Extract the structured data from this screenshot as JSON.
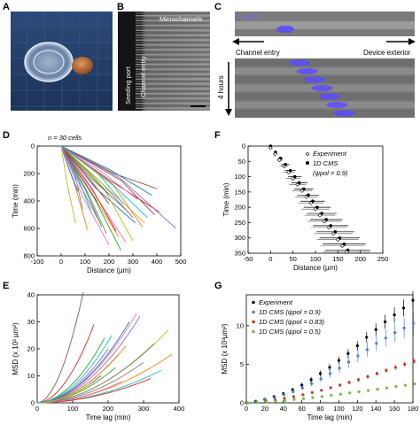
{
  "panels": {
    "A": "A",
    "B": "B",
    "C": "C",
    "D": "D",
    "E": "E",
    "F": "F",
    "G": "G"
  },
  "panel_b": {
    "seeding_port": "Seeding port",
    "channel_entry": "Channel entry",
    "microchannels": "Microchannels"
  },
  "panel_c": {
    "nucleus": "Nucleus",
    "channel_entry": "Channel entry",
    "device_exterior": "Device exterior",
    "time": "4 hours"
  },
  "colors": {
    "nucleus": "#5a4cff",
    "experiment": "#000000",
    "cms_09": "#4a7fd0",
    "cms_083": "#c0392b",
    "cms_05": "#7cb342"
  },
  "chart_data": [
    {
      "id": "D",
      "type": "line",
      "annotation": "n = 30 cells",
      "xlabel": "Distance (µm)",
      "ylabel": "Time (min)",
      "xlim": [
        -100,
        500
      ],
      "ylim": [
        0,
        800
      ],
      "y_inverted": true,
      "xticks": [
        -100,
        0,
        100,
        200,
        300,
        400,
        500
      ],
      "yticks": [
        0,
        200,
        400,
        600,
        800
      ],
      "series": [
        {
          "color": "#1f77b4",
          "x": [
            0,
            150,
            310
          ],
          "y": [
            0,
            300,
            560
          ]
        },
        {
          "color": "#ff7f0e",
          "x": [
            0,
            120,
            240
          ],
          "y": [
            0,
            320,
            660
          ]
        },
        {
          "color": "#2ca02c",
          "x": [
            0,
            90,
            170
          ],
          "y": [
            0,
            310,
            590
          ]
        },
        {
          "color": "#d62728",
          "x": [
            0,
            200,
            410
          ],
          "y": [
            0,
            240,
            480
          ]
        },
        {
          "color": "#9467bd",
          "x": [
            0,
            160,
            300
          ],
          "y": [
            0,
            260,
            520
          ]
        },
        {
          "color": "#8c564b",
          "x": [
            0,
            230,
            400
          ],
          "y": [
            0,
            200,
            310
          ]
        },
        {
          "color": "#e377c2",
          "x": [
            0,
            140,
            270
          ],
          "y": [
            0,
            350,
            700
          ]
        },
        {
          "color": "#7f7f7f",
          "x": [
            0,
            100,
            190
          ],
          "y": [
            0,
            330,
            640
          ]
        },
        {
          "color": "#bcbd22",
          "x": [
            0,
            180,
            350
          ],
          "y": [
            0,
            280,
            560
          ]
        },
        {
          "color": "#17becf",
          "x": [
            0,
            70,
            130
          ],
          "y": [
            0,
            250,
            500
          ]
        },
        {
          "color": "#1f77b4",
          "x": [
            0,
            210,
            380
          ],
          "y": [
            0,
            170,
            360
          ]
        },
        {
          "color": "#ff7f0e",
          "x": [
            0,
            60,
            110
          ],
          "y": [
            0,
            300,
            610
          ]
        },
        {
          "color": "#2ca02c",
          "x": [
            0,
            130,
            250
          ],
          "y": [
            0,
            380,
            760
          ]
        },
        {
          "color": "#d62728",
          "x": [
            0,
            110,
            200
          ],
          "y": [
            0,
            210,
            420
          ]
        },
        {
          "color": "#9467bd",
          "x": [
            0,
            240,
            480
          ],
          "y": [
            0,
            230,
            600
          ]
        },
        {
          "color": "#8c564b",
          "x": [
            0,
            80,
            150
          ],
          "y": [
            0,
            200,
            400
          ]
        },
        {
          "color": "#e377c2",
          "x": [
            0,
            170,
            320
          ],
          "y": [
            0,
            190,
            390
          ]
        },
        {
          "color": "#7f7f7f",
          "x": [
            0,
            50,
            90
          ],
          "y": [
            0,
            220,
            460
          ]
        },
        {
          "color": "#bcbd22",
          "x": [
            0,
            190,
            300
          ],
          "y": [
            0,
            330,
            690
          ]
        },
        {
          "color": "#17becf",
          "x": [
            0,
            150,
            260
          ],
          "y": [
            0,
            200,
            420
          ]
        },
        {
          "color": "#1f77b4",
          "x": [
            0,
            40,
            70
          ],
          "y": [
            0,
            160,
            330
          ]
        },
        {
          "color": "#ff7f0e",
          "x": [
            0,
            220,
            340
          ],
          "y": [
            0,
            290,
            590
          ]
        },
        {
          "color": "#2ca02c",
          "x": [
            0,
            100,
            210
          ],
          "y": [
            0,
            180,
            370
          ]
        },
        {
          "color": "#d62728",
          "x": [
            0,
            130,
            230
          ],
          "y": [
            0,
            300,
            620
          ]
        },
        {
          "color": "#9467bd",
          "x": [
            0,
            70,
            150
          ],
          "y": [
            0,
            270,
            520
          ]
        },
        {
          "color": "#8c564b",
          "x": [
            0,
            260,
            390
          ],
          "y": [
            0,
            250,
            500
          ]
        },
        {
          "color": "#e377c2",
          "x": [
            0,
            90,
            200
          ],
          "y": [
            0,
            370,
            720
          ]
        },
        {
          "color": "#7f7f7f",
          "x": [
            0,
            120,
            280
          ],
          "y": [
            0,
            240,
            480
          ]
        },
        {
          "color": "#bcbd22",
          "x": [
            0,
            30,
            60
          ],
          "y": [
            0,
            280,
            560
          ]
        },
        {
          "color": "#17becf",
          "x": [
            0,
            200,
            360
          ],
          "y": [
            0,
            260,
            520
          ]
        }
      ]
    },
    {
      "id": "E",
      "type": "line",
      "xlabel": "Time lag (min)",
      "ylabel": "MSD (x 10³ µm²)",
      "xlim": [
        0,
        400
      ],
      "ylim": [
        0,
        40
      ],
      "xticks": [
        0,
        100,
        200,
        300,
        400
      ],
      "yticks": [
        0,
        10,
        20,
        30,
        40
      ],
      "series": [
        {
          "color": "#8c564b",
          "x_end": 130,
          "y_end": 41
        },
        {
          "color": "#d62728",
          "x_end": 160,
          "y_end": 29
        },
        {
          "color": "#2ca02c",
          "x_end": 190,
          "y_end": 24
        },
        {
          "color": "#9467bd",
          "x_end": 200,
          "y_end": 20
        },
        {
          "color": "#1f77b4",
          "x_end": 230,
          "y_end": 18
        },
        {
          "color": "#ff7f0e",
          "x_end": 250,
          "y_end": 21
        },
        {
          "color": "#e377c2",
          "x_end": 280,
          "y_end": 33
        },
        {
          "color": "#7f7f7f",
          "x_end": 300,
          "y_end": 15
        },
        {
          "color": "#bcbd22",
          "x_end": 370,
          "y_end": 27
        },
        {
          "color": "#17becf",
          "x_end": 350,
          "y_end": 12
        },
        {
          "color": "#1f77b4",
          "x_end": 260,
          "y_end": 30
        },
        {
          "color": "#ff7f0e",
          "x_end": 380,
          "y_end": 18
        },
        {
          "color": "#2ca02c",
          "x_end": 220,
          "y_end": 13
        },
        {
          "color": "#d62728",
          "x_end": 320,
          "y_end": 9
        },
        {
          "color": "#9467bd",
          "x_end": 290,
          "y_end": 32
        },
        {
          "color": "#8c564b",
          "x_end": 180,
          "y_end": 10
        },
        {
          "color": "#e377c2",
          "x_end": 240,
          "y_end": 8
        },
        {
          "color": "#7f7f7f",
          "x_end": 330,
          "y_end": 22
        },
        {
          "color": "#bcbd22",
          "x_end": 150,
          "y_end": 7
        },
        {
          "color": "#17becf",
          "x_end": 210,
          "y_end": 25
        }
      ]
    },
    {
      "id": "F",
      "type": "scatter",
      "xlabel": "Distance (µm)",
      "ylabel": "Time (min)",
      "xlim": [
        -50,
        250
      ],
      "ylim": [
        0,
        350
      ],
      "y_inverted": true,
      "xticks": [
        -50,
        0,
        50,
        100,
        150,
        200,
        250
      ],
      "yticks": [
        0,
        50,
        100,
        150,
        200,
        250,
        300,
        350
      ],
      "legend": [
        "Experiment",
        "1D CMS",
        "(ψpol = 0.9)"
      ],
      "experiment": {
        "y": [
          0,
          20,
          40,
          60,
          80,
          100,
          120,
          140,
          160,
          180,
          200,
          220,
          240,
          260,
          280,
          300,
          320,
          340
        ],
        "x": [
          0,
          10,
          20,
          30,
          40,
          50,
          60,
          70,
          80,
          90,
          100,
          110,
          120,
          130,
          140,
          150,
          160,
          170
        ],
        "xerr": [
          0,
          4,
          7,
          10,
          13,
          16,
          19,
          22,
          25,
          28,
          31,
          34,
          37,
          40,
          43,
          46,
          49,
          52
        ]
      },
      "cms": {
        "y": [
          0,
          20,
          40,
          60,
          80,
          100,
          120,
          140,
          160,
          180,
          200,
          220,
          240,
          260,
          280,
          300,
          320,
          340
        ],
        "x": [
          0,
          11,
          22,
          33,
          44,
          54,
          64,
          74,
          84,
          94,
          104,
          114,
          124,
          134,
          144,
          154,
          164,
          172
        ],
        "xerr": [
          0,
          3,
          6,
          9,
          12,
          15,
          18,
          21,
          24,
          27,
          30,
          33,
          36,
          39,
          42,
          45,
          48,
          50
        ]
      }
    },
    {
      "id": "G",
      "type": "scatter",
      "xlabel": "Time lag (min)",
      "ylabel": "MSD (x 10³µm²)",
      "xlim": [
        0,
        180
      ],
      "ylim": [
        0,
        14
      ],
      "xticks": [
        0,
        20,
        40,
        60,
        80,
        100,
        120,
        140,
        160,
        180
      ],
      "yticks": [
        0,
        5,
        10
      ],
      "series": [
        {
          "name": "Experiment",
          "color": "#000000",
          "x": [
            0,
            10,
            20,
            30,
            40,
            50,
            60,
            70,
            80,
            90,
            100,
            110,
            120,
            130,
            140,
            150,
            160,
            170,
            180
          ],
          "y": [
            0,
            0.2,
            0.45,
            0.8,
            1.2,
            1.7,
            2.3,
            3.0,
            3.8,
            4.6,
            5.5,
            6.4,
            7.4,
            8.5,
            9.5,
            10.5,
            11.4,
            12.3,
            13.3
          ],
          "err": [
            0,
            0.05,
            0.1,
            0.15,
            0.2,
            0.25,
            0.3,
            0.35,
            0.4,
            0.45,
            0.5,
            0.55,
            0.6,
            0.7,
            0.8,
            0.9,
            1.0,
            1.1,
            1.2
          ]
        },
        {
          "name": "1D CMS (ψpol = 0.9)",
          "color": "#4a7fd0",
          "x": [
            0,
            10,
            20,
            30,
            40,
            50,
            60,
            70,
            80,
            90,
            100,
            110,
            120,
            130,
            140,
            150,
            160,
            170,
            180
          ],
          "y": [
            0,
            0.15,
            0.4,
            0.7,
            1.05,
            1.45,
            1.95,
            2.5,
            3.1,
            3.8,
            4.5,
            5.3,
            6.1,
            6.9,
            7.7,
            8.4,
            9.1,
            9.7,
            10.3
          ],
          "err": [
            0,
            0.05,
            0.1,
            0.15,
            0.2,
            0.25,
            0.3,
            0.35,
            0.4,
            0.5,
            0.6,
            0.7,
            0.8,
            0.9,
            1.0,
            1.1,
            1.2,
            1.3,
            1.5
          ]
        },
        {
          "name": "1D CMS (ψpol = 0.83)",
          "color": "#c0392b",
          "x": [
            0,
            10,
            20,
            30,
            40,
            50,
            60,
            70,
            80,
            90,
            100,
            110,
            120,
            130,
            140,
            150,
            160,
            170,
            180
          ],
          "y": [
            0,
            0.1,
            0.22,
            0.38,
            0.58,
            0.8,
            1.05,
            1.33,
            1.63,
            1.96,
            2.3,
            2.65,
            3.0,
            3.4,
            3.8,
            4.2,
            4.6,
            5.0,
            5.4
          ],
          "err": [
            0,
            0.03,
            0.05,
            0.07,
            0.09,
            0.11,
            0.13,
            0.15,
            0.17,
            0.19,
            0.21,
            0.23,
            0.25,
            0.27,
            0.29,
            0.31,
            0.33,
            0.35,
            0.37
          ]
        },
        {
          "name": "1D CMS (ψpol = 0.5)",
          "color": "#7cb342",
          "x": [
            0,
            10,
            20,
            30,
            40,
            50,
            60,
            70,
            80,
            90,
            100,
            110,
            120,
            130,
            140,
            150,
            160,
            170,
            180
          ],
          "y": [
            0,
            0.06,
            0.13,
            0.22,
            0.32,
            0.43,
            0.55,
            0.68,
            0.82,
            0.97,
            1.12,
            1.28,
            1.44,
            1.6,
            1.77,
            1.94,
            2.11,
            2.28,
            2.45
          ],
          "err": [
            0,
            0.02,
            0.03,
            0.04,
            0.05,
            0.06,
            0.07,
            0.08,
            0.09,
            0.1,
            0.11,
            0.12,
            0.13,
            0.14,
            0.15,
            0.16,
            0.17,
            0.18,
            0.19
          ]
        }
      ]
    }
  ]
}
